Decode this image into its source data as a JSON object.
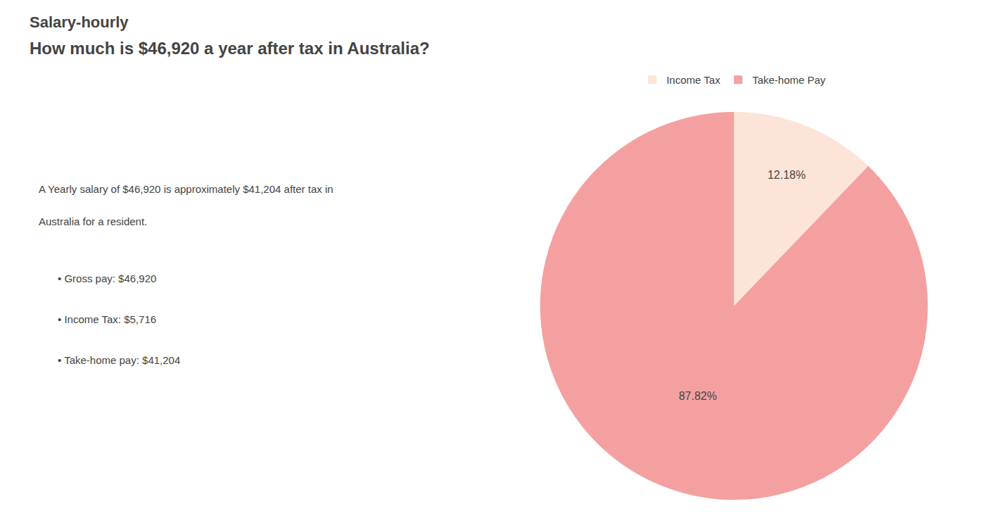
{
  "chart_data": {
    "type": "pie",
    "title": "How much is $46,920 a year after tax in Australia?",
    "annotations": [
      "Salary-hourly",
      "A Yearly salary of $46,920 is approximately $41,204 after tax in",
      "Australia for a resident.",
      "• Gross pay: $46,920",
      "• Income Tax: $5,716",
      "• Take-home pay: $41,204"
    ],
    "categories": [
      "Income Tax",
      "Take-home Pay"
    ],
    "values": [
      12.18,
      87.82
    ],
    "value_labels": [
      "12.18%",
      "87.82%"
    ],
    "colors": [
      "#fce4d8",
      "#f4a0a0"
    ],
    "data_labels": true,
    "legend": "top"
  }
}
